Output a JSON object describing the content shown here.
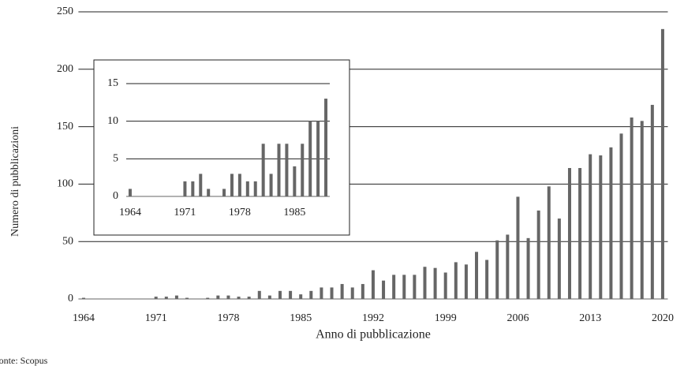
{
  "chart_data": [
    {
      "type": "bar",
      "x_label": "Anno di pubblicazione",
      "y_label": "Numero di pubblicazioni",
      "source": "Fonte: Scopus",
      "color": "#666666",
      "grid": true,
      "x": [
        1964,
        1965,
        1966,
        1967,
        1968,
        1969,
        1970,
        1971,
        1972,
        1973,
        1974,
        1975,
        1976,
        1977,
        1978,
        1979,
        1980,
        1981,
        1982,
        1983,
        1984,
        1985,
        1986,
        1987,
        1988,
        1989,
        1990,
        1991,
        1992,
        1993,
        1994,
        1995,
        1996,
        1997,
        1998,
        1999,
        2000,
        2001,
        2002,
        2003,
        2004,
        2005,
        2006,
        2007,
        2008,
        2009,
        2010,
        2011,
        2012,
        2013,
        2014,
        2015,
        2016,
        2017,
        2018,
        2019,
        2020
      ],
      "values": [
        1,
        0,
        0,
        0,
        0,
        0,
        0,
        2,
        2,
        3,
        1,
        0,
        1,
        3,
        3,
        2,
        2,
        7,
        3,
        7,
        7,
        4,
        7,
        10,
        10,
        13,
        10,
        13,
        25,
        16,
        21,
        21,
        21,
        28,
        27,
        23,
        32,
        30,
        41,
        34,
        51,
        56,
        89,
        53,
        77,
        98,
        70,
        114,
        114,
        126,
        125,
        132,
        144,
        158,
        155,
        169,
        235
      ],
      "xlim": [
        1963.5,
        2020.5
      ],
      "xticks": [
        1964,
        1971,
        1978,
        1985,
        1992,
        1999,
        2006,
        2013,
        2020
      ],
      "ylim": [
        0,
        250
      ],
      "yticks": [
        0,
        50,
        100,
        150,
        200,
        250
      ]
    },
    {
      "type": "bar",
      "color": "#666666",
      "grid": true,
      "x": [
        1964,
        1965,
        1966,
        1967,
        1968,
        1969,
        1970,
        1971,
        1972,
        1973,
        1974,
        1975,
        1976,
        1977,
        1978,
        1979,
        1980,
        1981,
        1982,
        1983,
        1984,
        1985,
        1986,
        1987,
        1988,
        1989
      ],
      "values": [
        1,
        0,
        0,
        0,
        0,
        0,
        0,
        2,
        2,
        3,
        1,
        0,
        1,
        3,
        3,
        2,
        2,
        7,
        3,
        7,
        7,
        4,
        7,
        10,
        10,
        13
      ],
      "xlim": [
        1963.5,
        1989.5
      ],
      "xticks": [
        1964,
        1971,
        1978,
        1985
      ],
      "ylim": [
        0,
        15
      ],
      "yticks": [
        0,
        5,
        10,
        15
      ]
    }
  ]
}
